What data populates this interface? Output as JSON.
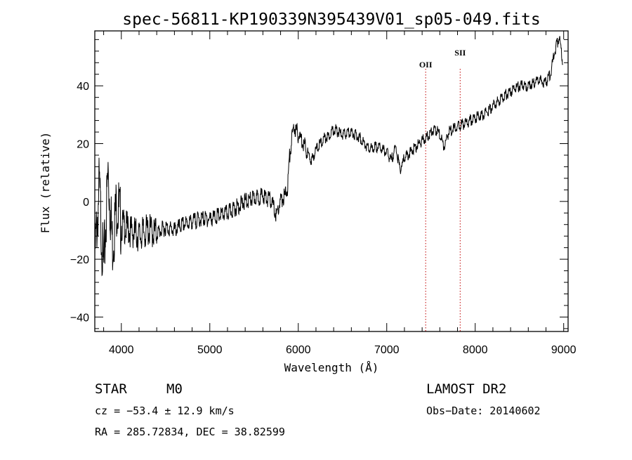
{
  "chart_data": {
    "type": "line",
    "title": "spec-56811-KP190339N395439V01_sp05-049.fits",
    "xlabel": "Wavelength (Å)",
    "ylabel": "Flux (relative)",
    "xlim": [
      3700,
      9050
    ],
    "ylim": [
      -45,
      59
    ],
    "x_ticks": [
      4000,
      5000,
      6000,
      7000,
      8000,
      9000
    ],
    "y_ticks": [
      -40,
      -20,
      0,
      20,
      40
    ],
    "grid": false,
    "spectral_lines": [
      {
        "name": "OII",
        "wavelength": 7440
      },
      {
        "name": "SII",
        "wavelength": 7830
      }
    ],
    "series": [
      {
        "color": "#000000",
        "x": [
          3700,
          3750,
          3800,
          3850,
          3900,
          3950,
          4000,
          4100,
          4200,
          4300,
          4400,
          4500,
          4600,
          4700,
          4800,
          4900,
          5000,
          5100,
          5200,
          5300,
          5400,
          5500,
          5600,
          5700,
          5750,
          5800,
          5850,
          5880,
          5900,
          5920,
          5950,
          6000,
          6050,
          6100,
          6150,
          6200,
          6250,
          6300,
          6350,
          6400,
          6450,
          6500,
          6600,
          6700,
          6800,
          6900,
          7000,
          7050,
          7100,
          7150,
          7200,
          7300,
          7400,
          7450,
          7500,
          7550,
          7600,
          7650,
          7700,
          7750,
          7800,
          7900,
          8000,
          8100,
          8200,
          8300,
          8400,
          8500,
          8600,
          8700,
          8800,
          8850,
          8900,
          8950,
          9000
        ],
        "y": [
          -20,
          5,
          -25,
          10,
          -15,
          0,
          -8,
          -10,
          -12,
          -10,
          -11,
          -9,
          -10,
          -8,
          -7,
          -6,
          -6,
          -5,
          -4,
          -2,
          0,
          1,
          2,
          0,
          -5,
          0,
          2,
          5,
          15,
          20,
          26,
          23,
          21,
          17,
          14,
          18,
          20,
          22,
          23,
          25,
          24,
          23,
          24,
          22,
          18,
          19,
          17,
          14,
          19,
          11,
          15,
          18,
          21,
          22,
          24,
          25,
          23,
          19,
          24,
          25,
          26,
          27,
          29,
          30,
          33,
          36,
          38,
          40,
          40,
          42,
          41,
          44,
          52,
          57,
          46
        ]
      }
    ]
  },
  "info": {
    "object_type": "STAR",
    "subclass": "M0",
    "survey": "LAMOST DR2",
    "cz": "cz = −53.4 ± 12.9 km/s",
    "obs_date": "Obs−Date: 20140602",
    "radec": "RA = 285.72834, DEC =  38.82599"
  }
}
